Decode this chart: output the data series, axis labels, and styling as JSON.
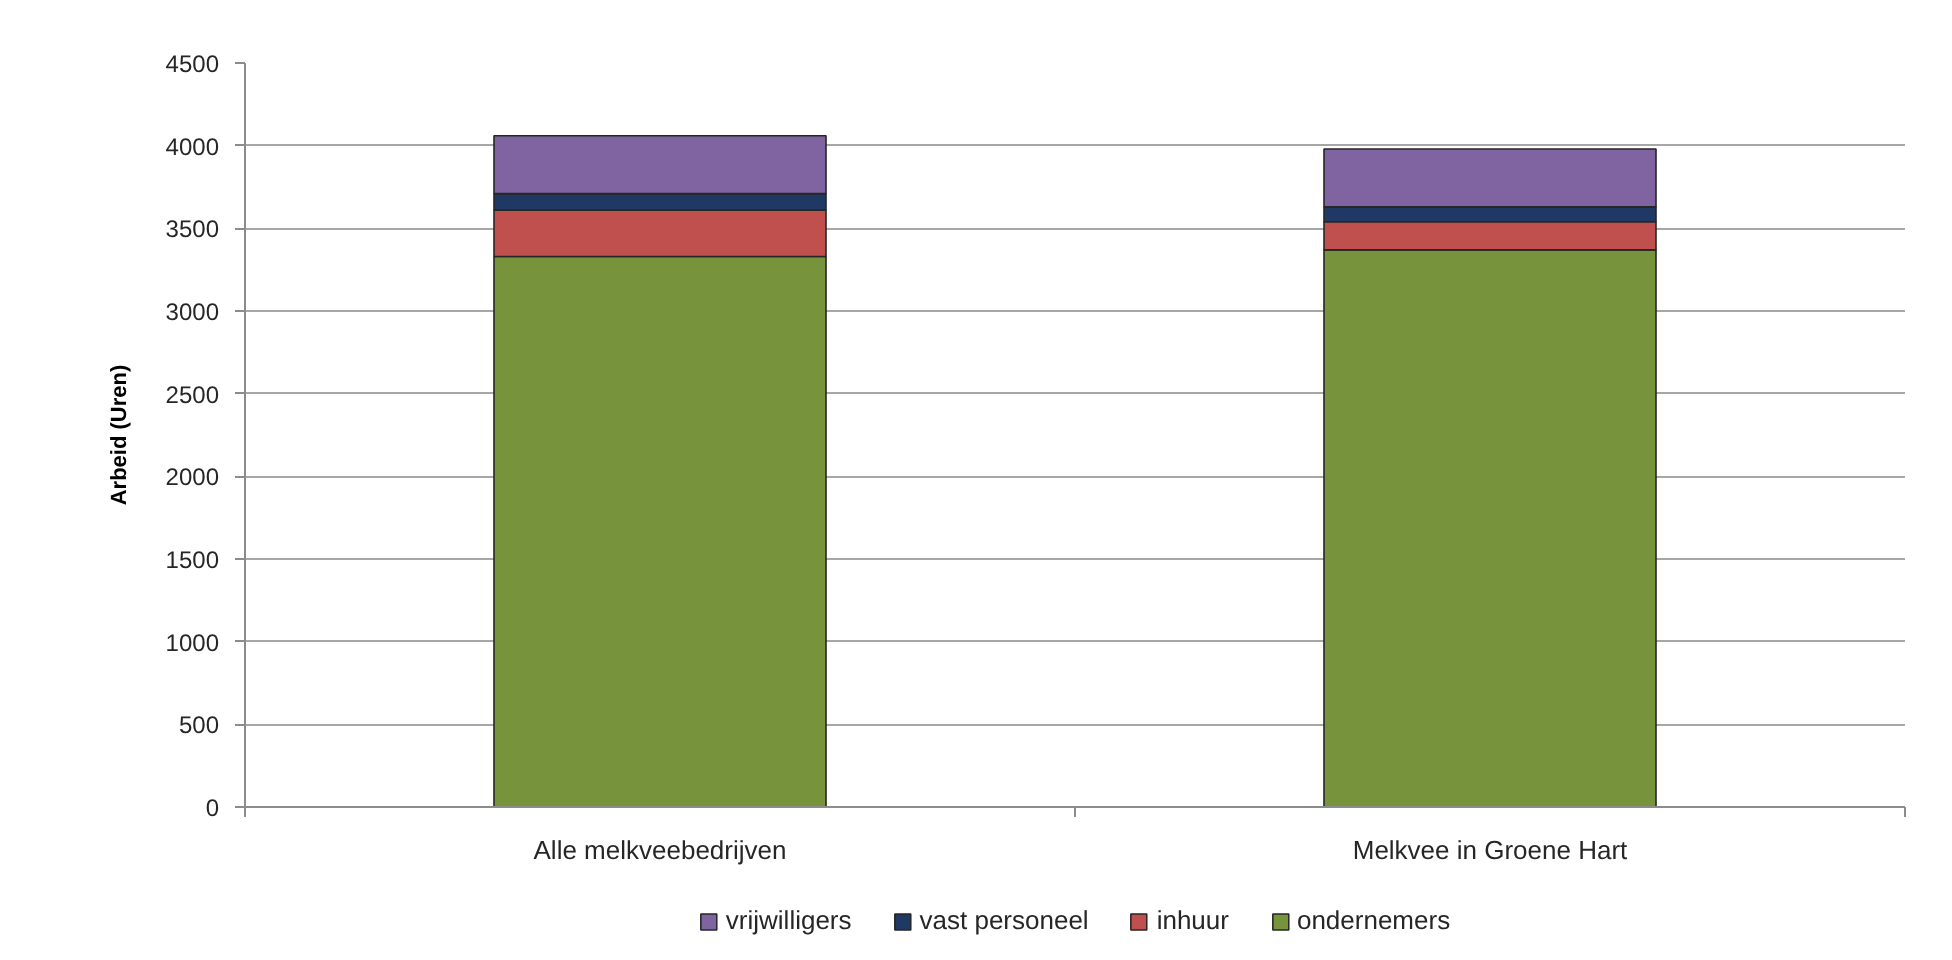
{
  "chart_data": {
    "type": "bar",
    "stacked": true,
    "ylabel": "Arbeid (Uren)",
    "categories": [
      "Alle melkveebedrijven",
      "Melkvee in Groene Hart"
    ],
    "series": [
      {
        "name": "ondernemers",
        "color": "#77933c",
        "values": [
          3330,
          3370
        ]
      },
      {
        "name": "inhuur",
        "color": "#c0504d",
        "values": [
          280,
          170
        ]
      },
      {
        "name": "vast personeel",
        "color": "#1f3864",
        "values": [
          100,
          90
        ]
      },
      {
        "name": "vrijwilligers",
        "color": "#8064a2",
        "values": [
          350,
          350
        ]
      }
    ],
    "ylim": [
      0,
      4500
    ],
    "yticks": [
      0,
      500,
      1000,
      1500,
      2000,
      2500,
      3000,
      3500,
      4000,
      4500
    ],
    "grid": "y",
    "legend": "bottom"
  }
}
